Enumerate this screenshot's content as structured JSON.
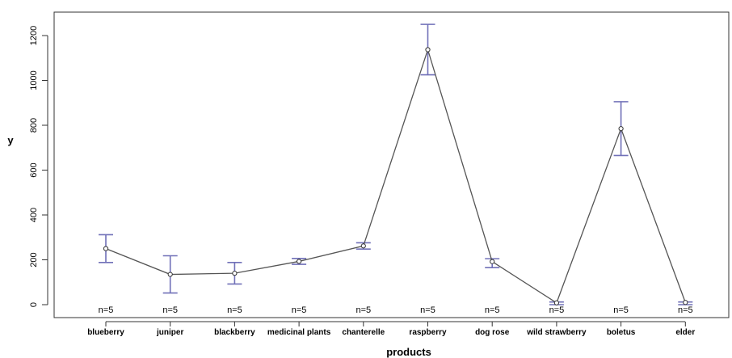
{
  "chart_data": {
    "type": "line",
    "title": "",
    "xlabel": "products",
    "ylabel": "y",
    "categories": [
      "blueberry",
      "juniper",
      "blackberry",
      "medicinal plants",
      "chanterelle",
      "raspberry",
      "dog rose",
      "wild strawberry",
      "boletus",
      "elder"
    ],
    "n_labels": [
      "n=5",
      "n=5",
      "n=5",
      "n=5",
      "n=5",
      "n=5",
      "n=5",
      "n=5",
      "n=5",
      "n=5"
    ],
    "series": [
      {
        "values": [
          250,
          135,
          140,
          193,
          262,
          1137,
          192,
          8,
          785,
          10
        ],
        "err_low": [
          188,
          52,
          92,
          180,
          248,
          1025,
          165,
          0,
          665,
          0
        ],
        "err_high": [
          312,
          218,
          188,
          206,
          276,
          1250,
          205,
          12,
          905,
          12
        ],
        "color": "#555555",
        "errorbar_color": "#7070b8"
      }
    ],
    "ylim": [
      -40,
      1300
    ],
    "yticks": [
      0,
      200,
      400,
      600,
      800,
      1000,
      1200
    ],
    "grid": false,
    "legend": "none"
  }
}
